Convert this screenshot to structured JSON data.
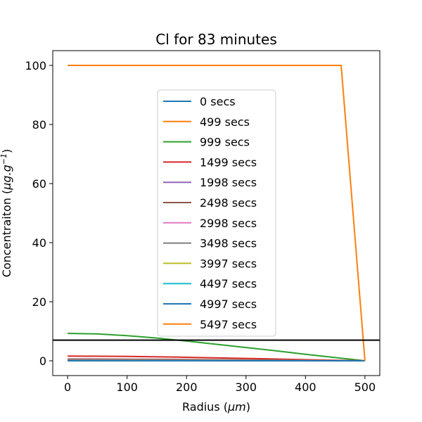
{
  "chart_data": {
    "type": "line",
    "title_prefix": "Cl for 83 minutes",
    "xlabel_text": "Radius (",
    "xlabel_unit": "μm",
    "xlabel_close": ")",
    "ylabel_text": "Concentraiton (",
    "ylabel_unit": "μg.g",
    "ylabel_sup": "−1",
    "ylabel_close": ")",
    "xlim": [
      -25,
      525
    ],
    "ylim": [
      -5,
      105
    ],
    "xticks": [
      0,
      100,
      200,
      300,
      400,
      500
    ],
    "yticks": [
      0,
      20,
      40,
      60,
      80,
      100
    ],
    "hline": {
      "y": 7,
      "color": "#000000"
    },
    "legend_position": "center",
    "series": [
      {
        "name": "0 secs",
        "color": "#1f77b4",
        "x": [
          0,
          500
        ],
        "y": [
          0,
          0
        ]
      },
      {
        "name": "499 secs",
        "color": "#ff7f0e",
        "x": [
          0,
          500
        ],
        "y": [
          0,
          0
        ]
      },
      {
        "name": "999 secs",
        "color": "#2ca02c",
        "x": [
          0,
          50,
          100,
          150,
          200,
          250,
          300,
          350,
          400,
          450,
          500
        ],
        "y": [
          9.3,
          9.1,
          8.5,
          7.7,
          6.7,
          5.6,
          4.5,
          3.4,
          2.2,
          1.1,
          0
        ]
      },
      {
        "name": "1499 secs",
        "color": "#d62728",
        "x": [
          0,
          100,
          200,
          300,
          400,
          500
        ],
        "y": [
          1.6,
          1.5,
          1.2,
          0.8,
          0.4,
          0
        ]
      },
      {
        "name": "1998 secs",
        "color": "#9467bd",
        "x": [
          0,
          100,
          200,
          300,
          400,
          500
        ],
        "y": [
          0.4,
          0.38,
          0.3,
          0.2,
          0.1,
          0
        ]
      },
      {
        "name": "2498 secs",
        "color": "#8c564b",
        "x": [
          0,
          100,
          200,
          300,
          400,
          500
        ],
        "y": [
          0.6,
          0.55,
          0.45,
          0.3,
          0.15,
          0
        ]
      },
      {
        "name": "2998 secs",
        "color": "#e377c2",
        "x": [
          0,
          100,
          200,
          300,
          400,
          500
        ],
        "y": [
          0.3,
          0.28,
          0.22,
          0.15,
          0.08,
          0
        ]
      },
      {
        "name": "3498 secs",
        "color": "#7f7f7f",
        "x": [
          0,
          100,
          200,
          300,
          400,
          500
        ],
        "y": [
          0.2,
          0.18,
          0.15,
          0.1,
          0.05,
          0
        ]
      },
      {
        "name": "3997 secs",
        "color": "#bcbd22",
        "x": [
          0,
          100,
          200,
          300,
          400,
          500
        ],
        "y": [
          0.1,
          0.1,
          0.08,
          0.05,
          0.03,
          0
        ]
      },
      {
        "name": "4497 secs",
        "color": "#17becf",
        "x": [
          0,
          100,
          200,
          300,
          400,
          500
        ],
        "y": [
          0.05,
          0.05,
          0.04,
          0.03,
          0.01,
          0
        ]
      },
      {
        "name": "4997 secs",
        "color": "#1f77b4",
        "x": [
          0,
          100,
          200,
          300,
          400,
          500
        ],
        "y": [
          0.02,
          0.02,
          0.02,
          0.01,
          0.01,
          0
        ]
      },
      {
        "name": "5497 secs",
        "color": "#ff7f0e",
        "x": [
          0,
          460,
          500
        ],
        "y": [
          100,
          100,
          0
        ]
      }
    ]
  }
}
